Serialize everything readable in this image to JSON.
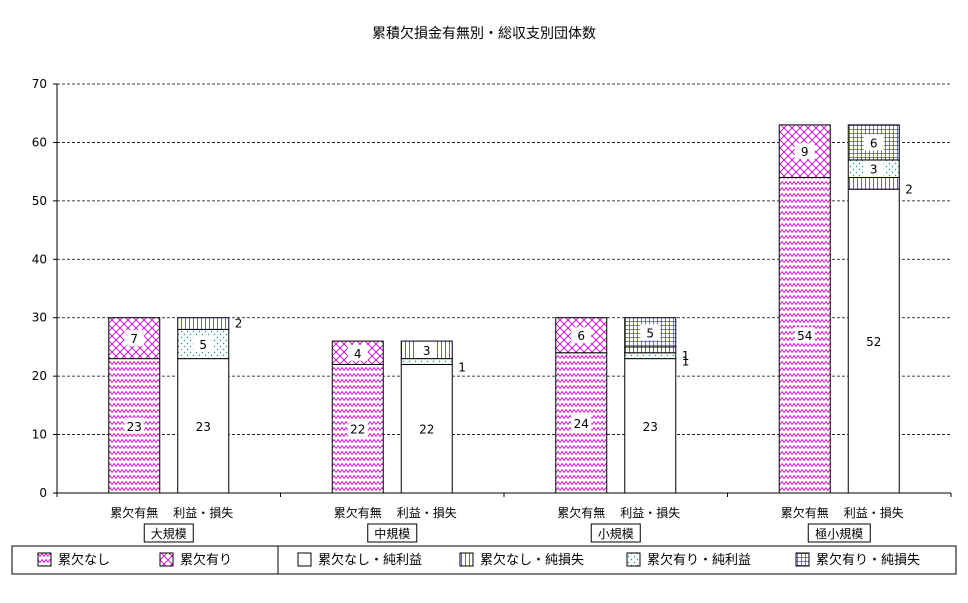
{
  "chart_data": {
    "type": "bar",
    "title": "累積欠損金有無別・総収支別団体数",
    "ylim": [
      0,
      70
    ],
    "yticks": [
      0,
      10,
      20,
      30,
      40,
      50,
      60,
      70
    ],
    "grid": "horizontal-dashed",
    "legend_position": "bottom",
    "groups": [
      {
        "label": "大規模",
        "bars": [
          {
            "label": "累欠有無",
            "segments": [
              {
                "series": "累欠なし",
                "value": 23,
                "label": "23"
              },
              {
                "series": "累欠有り",
                "value": 7,
                "label": "7"
              }
            ]
          },
          {
            "label": "利益・損失",
            "segments": [
              {
                "series": "累欠なし・純利益",
                "value": 23,
                "label": "23"
              },
              {
                "series": "累欠有り・純利益",
                "value": 5,
                "label": "5"
              },
              {
                "series": "累欠なし・純損失",
                "value": 2,
                "label": "2"
              }
            ]
          }
        ]
      },
      {
        "label": "中規模",
        "bars": [
          {
            "label": "累欠有無",
            "segments": [
              {
                "series": "累欠なし",
                "value": 22,
                "label": "22"
              },
              {
                "series": "累欠有り",
                "value": 4,
                "label": "4"
              }
            ]
          },
          {
            "label": "利益・損失",
            "segments": [
              {
                "series": "累欠なし・純利益",
                "value": 22,
                "label": "22"
              },
              {
                "series": "累欠有り・純利益",
                "value": 1,
                "label": "1"
              },
              {
                "series": "累欠なし・純損失",
                "value": 3,
                "label": "3"
              }
            ]
          }
        ]
      },
      {
        "label": "小規模",
        "bars": [
          {
            "label": "累欠有無",
            "segments": [
              {
                "series": "累欠なし",
                "value": 24,
                "label": "24"
              },
              {
                "series": "累欠有り",
                "value": 6,
                "label": "6"
              }
            ]
          },
          {
            "label": "利益・損失",
            "segments": [
              {
                "series": "累欠なし・純利益",
                "value": 23,
                "label": "23"
              },
              {
                "series": "累欠有り・純利益",
                "value": 1,
                "label": "1"
              },
              {
                "series": "累欠なし・純損失",
                "value": 1,
                "label": "1"
              },
              {
                "series": "累欠有り・純損失",
                "value": 5,
                "label": "5"
              }
            ]
          }
        ]
      },
      {
        "label": "極小規模",
        "bars": [
          {
            "label": "累欠有無",
            "segments": [
              {
                "series": "累欠なし",
                "value": 54,
                "label": "54"
              },
              {
                "series": "累欠有り",
                "value": 9,
                "label": "9"
              }
            ]
          },
          {
            "label": "利益・損失",
            "segments": [
              {
                "series": "累欠なし・純利益",
                "value": 52,
                "label": "52"
              },
              {
                "series": "累欠なし・純損失",
                "value": 2,
                "label": "2"
              },
              {
                "series": "累欠有り・純利益",
                "value": 3,
                "label": "3"
              },
              {
                "series": "累欠有り・純損失",
                "value": 6,
                "label": "6"
              }
            ]
          }
        ]
      }
    ],
    "legend": [
      {
        "name": "累欠なし",
        "pattern": "zigzag"
      },
      {
        "name": "累欠有り",
        "pattern": "crosshatch"
      },
      {
        "name": "累欠なし・純利益",
        "pattern": "blank"
      },
      {
        "name": "累欠なし・純損失",
        "pattern": "vertical-lines"
      },
      {
        "name": "累欠有り・純利益",
        "pattern": "dots"
      },
      {
        "name": "累欠有り・純損失",
        "pattern": "grid"
      }
    ],
    "colors": {
      "pink": "#cc00cc",
      "blue": "#5050c0",
      "green": "#10a090",
      "axis": "#000000"
    }
  }
}
